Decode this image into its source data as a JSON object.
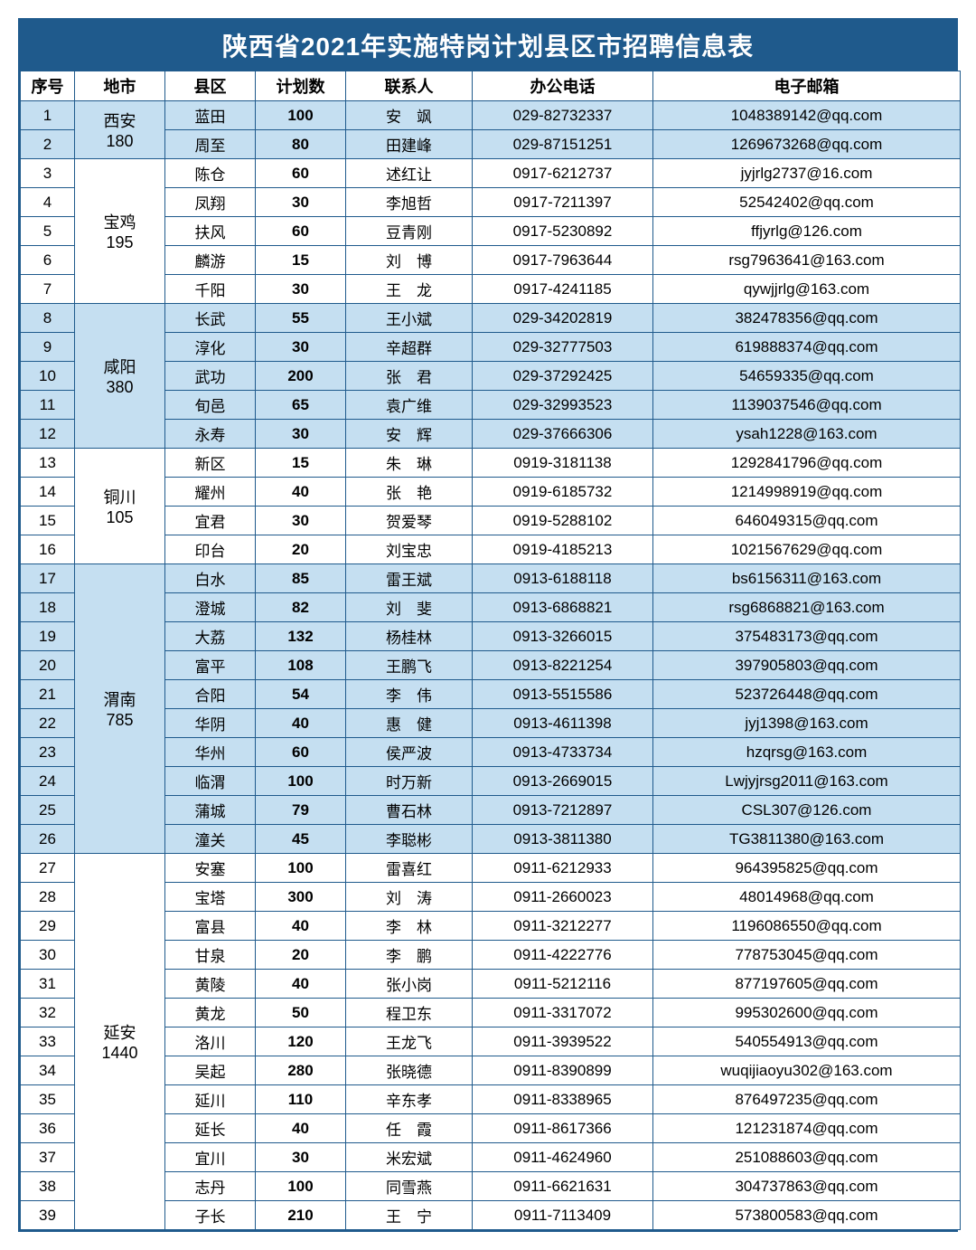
{
  "title": "陕西省2021年实施特岗计划县区市招聘信息表",
  "headers": {
    "seq": "序号",
    "city": "地市",
    "county": "县区",
    "plan": "计划数",
    "contact": "联系人",
    "phone": "办公电话",
    "email": "电子邮箱"
  },
  "colors": {
    "border": "#1f5a8c",
    "header_bg": "#1f5a8c",
    "header_fg": "#ffffff",
    "band_blue": "#c5dff1",
    "band_white": "#ffffff"
  },
  "groups": [
    {
      "city": "西安",
      "total": "180",
      "band": "blue",
      "rows": [
        {
          "seq": "1",
          "county": "蓝田",
          "plan": "100",
          "contact": "安　飒",
          "phone": "029-82732337",
          "email": "1048389142@qq.com"
        },
        {
          "seq": "2",
          "county": "周至",
          "plan": "80",
          "contact": "田建峰",
          "phone": "029-87151251",
          "email": "1269673268@qq.com"
        }
      ]
    },
    {
      "city": "宝鸡",
      "total": "195",
      "band": "white",
      "rows": [
        {
          "seq": "3",
          "county": "陈仓",
          "plan": "60",
          "contact": "述红让",
          "phone": "0917-6212737",
          "email": "jyjrlg2737@16.com"
        },
        {
          "seq": "4",
          "county": "凤翔",
          "plan": "30",
          "contact": "李旭哲",
          "phone": "0917-7211397",
          "email": "52542402@qq.com"
        },
        {
          "seq": "5",
          "county": "扶风",
          "plan": "60",
          "contact": "豆青刚",
          "phone": "0917-5230892",
          "email": "ffjyrlg@126.com"
        },
        {
          "seq": "6",
          "county": "麟游",
          "plan": "15",
          "contact": "刘　博",
          "phone": "0917-7963644",
          "email": "rsg7963641@163.com"
        },
        {
          "seq": "7",
          "county": "千阳",
          "plan": "30",
          "contact": "王　龙",
          "phone": "0917-4241185",
          "email": "qywjjrlg@163.com"
        }
      ]
    },
    {
      "city": "咸阳",
      "total": "380",
      "band": "blue",
      "rows": [
        {
          "seq": "8",
          "county": "长武",
          "plan": "55",
          "contact": "王小斌",
          "phone": "029-34202819",
          "email": "382478356@qq.com"
        },
        {
          "seq": "9",
          "county": "淳化",
          "plan": "30",
          "contact": "辛超群",
          "phone": "029-32777503",
          "email": "619888374@qq.com"
        },
        {
          "seq": "10",
          "county": "武功",
          "plan": "200",
          "contact": "张　君",
          "phone": "029-37292425",
          "email": "54659335@qq.com"
        },
        {
          "seq": "11",
          "county": "旬邑",
          "plan": "65",
          "contact": "袁广维",
          "phone": "029-32993523",
          "email": "1139037546@qq.com"
        },
        {
          "seq": "12",
          "county": "永寿",
          "plan": "30",
          "contact": "安　辉",
          "phone": "029-37666306",
          "email": "ysah1228@163.com"
        }
      ]
    },
    {
      "city": "铜川",
      "total": "105",
      "band": "white",
      "rows": [
        {
          "seq": "13",
          "county": "新区",
          "plan": "15",
          "contact": "朱　琳",
          "phone": "0919-3181138",
          "email": "1292841796@qq.com"
        },
        {
          "seq": "14",
          "county": "耀州",
          "plan": "40",
          "contact": "张　艳",
          "phone": "0919-6185732",
          "email": "1214998919@qq.com"
        },
        {
          "seq": "15",
          "county": "宜君",
          "plan": "30",
          "contact": "贺爱琴",
          "phone": "0919-5288102",
          "email": "646049315@qq.com"
        },
        {
          "seq": "16",
          "county": "印台",
          "plan": "20",
          "contact": "刘宝忠",
          "phone": "0919-4185213",
          "email": "1021567629@qq.com"
        }
      ]
    },
    {
      "city": "渭南",
      "total": "785",
      "band": "blue",
      "rows": [
        {
          "seq": "17",
          "county": "白水",
          "plan": "85",
          "contact": "雷王斌",
          "phone": "0913-6188118",
          "email": "bs6156311@163.com"
        },
        {
          "seq": "18",
          "county": "澄城",
          "plan": "82",
          "contact": "刘　斐",
          "phone": "0913-6868821",
          "email": "rsg6868821@163.com"
        },
        {
          "seq": "19",
          "county": "大荔",
          "plan": "132",
          "contact": "杨桂林",
          "phone": "0913-3266015",
          "email": "375483173@qq.com"
        },
        {
          "seq": "20",
          "county": "富平",
          "plan": "108",
          "contact": "王鹏飞",
          "phone": "0913-8221254",
          "email": "397905803@qq.com"
        },
        {
          "seq": "21",
          "county": "合阳",
          "plan": "54",
          "contact": "李　伟",
          "phone": "0913-5515586",
          "email": "523726448@qq.com"
        },
        {
          "seq": "22",
          "county": "华阴",
          "plan": "40",
          "contact": "惠　健",
          "phone": "0913-4611398",
          "email": "jyj1398@163.com"
        },
        {
          "seq": "23",
          "county": "华州",
          "plan": "60",
          "contact": "侯严波",
          "phone": "0913-4733734",
          "email": "hzqrsg@163.com"
        },
        {
          "seq": "24",
          "county": "临渭",
          "plan": "100",
          "contact": "时万新",
          "phone": "0913-2669015",
          "email": "Lwjyjrsg2011@163.com"
        },
        {
          "seq": "25",
          "county": "蒲城",
          "plan": "79",
          "contact": "曹石林",
          "phone": "0913-7212897",
          "email": "CSL307@126.com"
        },
        {
          "seq": "26",
          "county": "潼关",
          "plan": "45",
          "contact": "李聪彬",
          "phone": "0913-3811380",
          "email": "TG3811380@163.com"
        }
      ]
    },
    {
      "city": "延安",
      "total": "1440",
      "band": "white",
      "rows": [
        {
          "seq": "27",
          "county": "安塞",
          "plan": "100",
          "contact": "雷喜红",
          "phone": "0911-6212933",
          "email": "964395825@qq.com"
        },
        {
          "seq": "28",
          "county": "宝塔",
          "plan": "300",
          "contact": "刘　涛",
          "phone": "0911-2660023",
          "email": "48014968@qq.com"
        },
        {
          "seq": "29",
          "county": "富县",
          "plan": "40",
          "contact": "李　林",
          "phone": "0911-3212277",
          "email": "1196086550@qq.com"
        },
        {
          "seq": "30",
          "county": "甘泉",
          "plan": "20",
          "contact": "李　鹏",
          "phone": "0911-4222776",
          "email": "778753045@qq.com"
        },
        {
          "seq": "31",
          "county": "黄陵",
          "plan": "40",
          "contact": "张小岗",
          "phone": "0911-5212116",
          "email": "877197605@qq.com"
        },
        {
          "seq": "32",
          "county": "黄龙",
          "plan": "50",
          "contact": "程卫东",
          "phone": "0911-3317072",
          "email": "995302600@qq.com"
        },
        {
          "seq": "33",
          "county": "洛川",
          "plan": "120",
          "contact": "王龙飞",
          "phone": "0911-3939522",
          "email": "540554913@qq.com"
        },
        {
          "seq": "34",
          "county": "吴起",
          "plan": "280",
          "contact": "张晓德",
          "phone": "0911-8390899",
          "email": "wuqijiaoyu302@163.com"
        },
        {
          "seq": "35",
          "county": "延川",
          "plan": "110",
          "contact": "辛东孝",
          "phone": "0911-8338965",
          "email": "876497235@qq.com"
        },
        {
          "seq": "36",
          "county": "延长",
          "plan": "40",
          "contact": "任　霞",
          "phone": "0911-8617366",
          "email": "121231874@qq.com"
        },
        {
          "seq": "37",
          "county": "宜川",
          "plan": "30",
          "contact": "米宏斌",
          "phone": "0911-4624960",
          "email": "251088603@qq.com"
        },
        {
          "seq": "38",
          "county": "志丹",
          "plan": "100",
          "contact": "同雪燕",
          "phone": "0911-6621631",
          "email": "304737863@qq.com"
        },
        {
          "seq": "39",
          "county": "子长",
          "plan": "210",
          "contact": "王　宁",
          "phone": "0911-7113409",
          "email": "573800583@qq.com"
        }
      ]
    }
  ]
}
